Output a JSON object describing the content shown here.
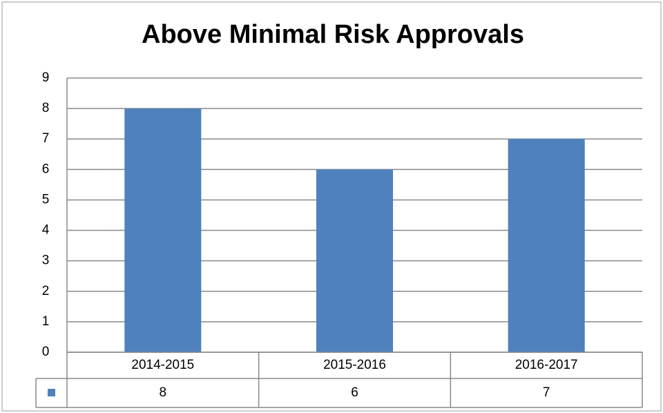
{
  "chart_data": {
    "type": "bar",
    "title": "Above Minimal Risk Approvals",
    "categories": [
      "2014-2015",
      "2015-2016",
      "2016-2017"
    ],
    "values": [
      8,
      6,
      7
    ],
    "color": "#4f81bd",
    "ylim": [
      0,
      9
    ],
    "yticks": [
      0,
      1,
      2,
      3,
      4,
      5,
      6,
      7,
      8,
      9
    ],
    "grid": true
  }
}
